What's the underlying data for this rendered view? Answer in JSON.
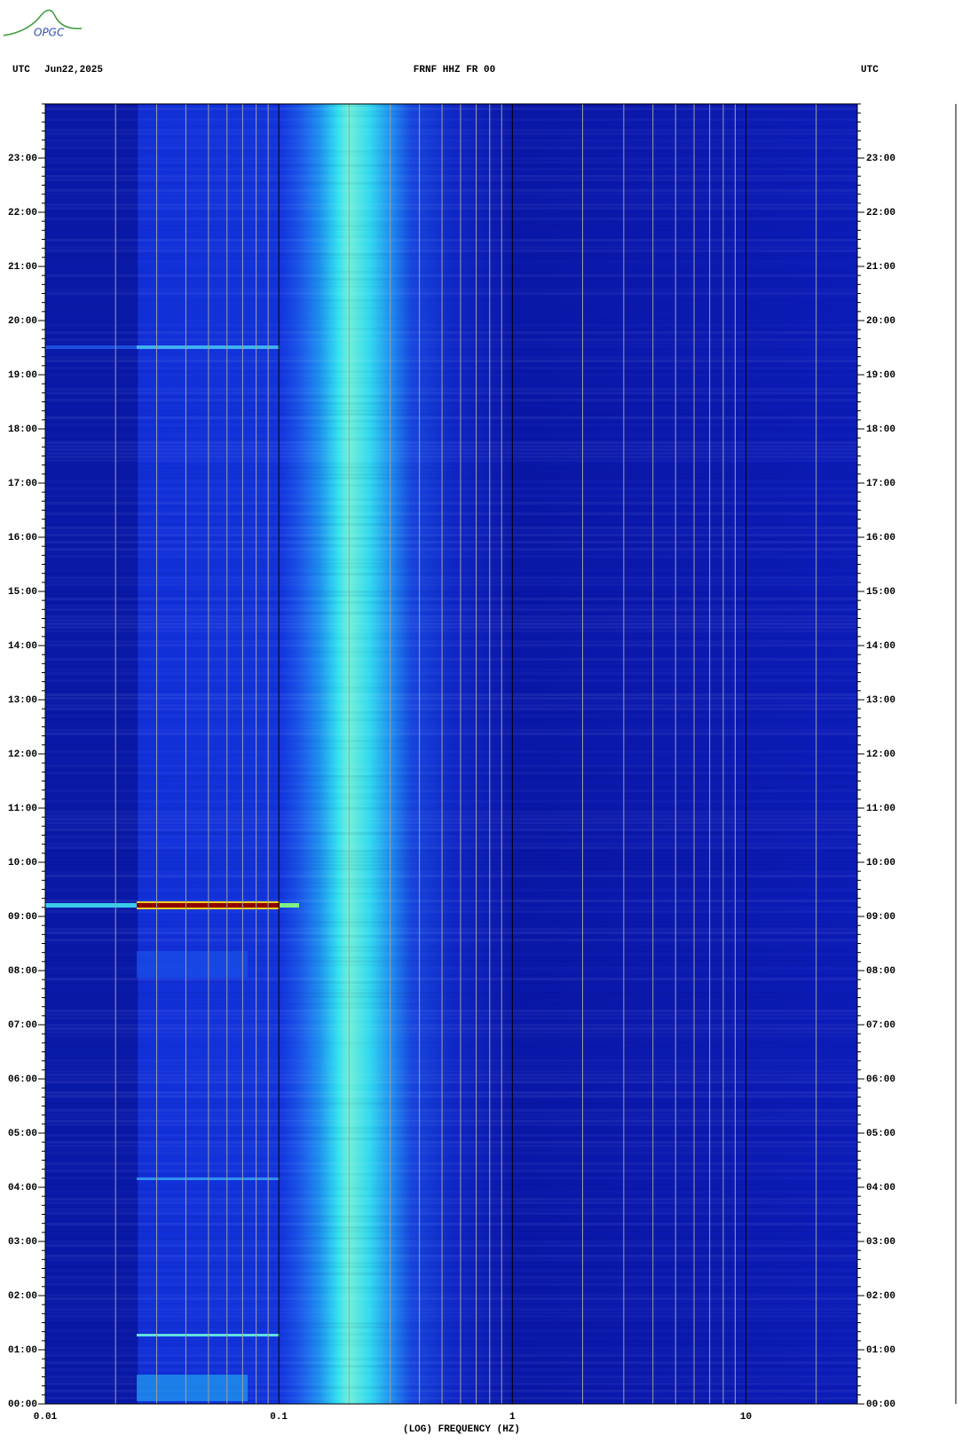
{
  "chart_data": {
    "type": "spectrogram",
    "logo": "OPGC",
    "title": "FRNF HHZ FR 00",
    "left_header": "UTC",
    "date": "Jun22,2025",
    "right_header": "UTC",
    "xlabel": "(LOG) FREQUENCY (HZ)",
    "xscale": "log",
    "xlim": [
      0.01,
      30
    ],
    "xticks": [
      0.01,
      0.1,
      1,
      10
    ],
    "ylim": [
      0,
      24
    ],
    "yticks": [
      {
        "value": 0,
        "label": "00:00"
      },
      {
        "value": 1,
        "label": "01:00"
      },
      {
        "value": 2,
        "label": "02:00"
      },
      {
        "value": 3,
        "label": "03:00"
      },
      {
        "value": 4,
        "label": "04:00"
      },
      {
        "value": 5,
        "label": "05:00"
      },
      {
        "value": 6,
        "label": "06:00"
      },
      {
        "value": 7,
        "label": "07:00"
      },
      {
        "value": 8,
        "label": "08:00"
      },
      {
        "value": 9,
        "label": "09:00"
      },
      {
        "value": 10,
        "label": "10:00"
      },
      {
        "value": 11,
        "label": "11:00"
      },
      {
        "value": 12,
        "label": "12:00"
      },
      {
        "value": 13,
        "label": "13:00"
      },
      {
        "value": 14,
        "label": "14:00"
      },
      {
        "value": 15,
        "label": "15:00"
      },
      {
        "value": 16,
        "label": "16:00"
      },
      {
        "value": 17,
        "label": "17:00"
      },
      {
        "value": 18,
        "label": "18:00"
      },
      {
        "value": 19,
        "label": "19:00"
      },
      {
        "value": 20,
        "label": "20:00"
      },
      {
        "value": 21,
        "label": "21:00"
      },
      {
        "value": 22,
        "label": "22:00"
      },
      {
        "value": 23,
        "label": "23:00"
      }
    ]
  }
}
